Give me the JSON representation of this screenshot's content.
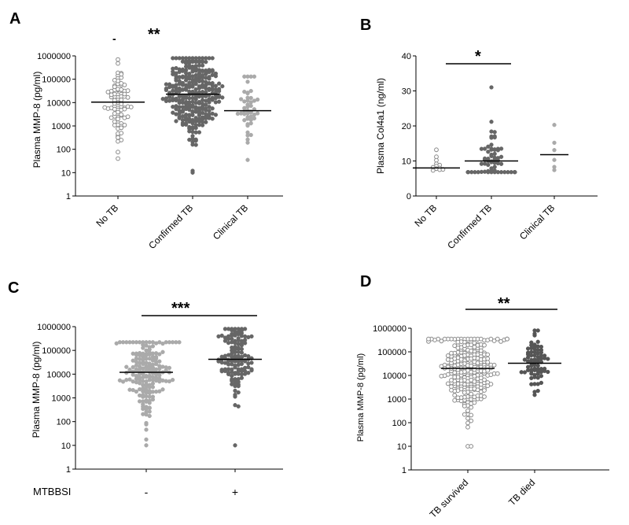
{
  "colors": {
    "open": "#8a8a8a",
    "light": "#aaaaaa",
    "dark": "#666666",
    "darker": "#555555"
  },
  "chart_data": [
    {
      "panel": "A",
      "type": "scatter",
      "ylabel": "Plasma MMP-8 (pg/ml)",
      "yscale": "log",
      "ylim": [
        1,
        1000000
      ],
      "ticks": [
        "1",
        "10",
        "100",
        "1000",
        "10000",
        "100000",
        "1000000"
      ],
      "significance": {
        "stars": "**",
        "dash": "-"
      },
      "groups": [
        {
          "name": "No TB",
          "style": "open",
          "median": 10500,
          "n": 80,
          "min": 40,
          "max": 700000,
          "values_summary": "spread 40–700000"
        },
        {
          "name": "Confirmed TB",
          "style": "dark",
          "median": 23000,
          "n": 300,
          "min": 10,
          "max": 800000,
          "values_summary": "spread 10–800000"
        },
        {
          "name": "Clinical TB",
          "style": "light",
          "median": 4500,
          "n": 45,
          "min": 35,
          "max": 130000,
          "values_summary": "spread 35–130000"
        }
      ]
    },
    {
      "panel": "B",
      "type": "scatter",
      "ylabel": "Plasma Col4a1 (ng/ml)",
      "yscale": "linear",
      "ylim": [
        0,
        40
      ],
      "ticks": [
        "0",
        "10",
        "20",
        "30",
        "40"
      ],
      "significance": {
        "stars": "*",
        "from": "No TB",
        "to": "Confirmed TB"
      },
      "groups": [
        {
          "name": "No TB",
          "style": "open",
          "median": 8,
          "values": [
            13.2,
            11.2,
            10.2,
            9.2,
            8.8,
            8.5,
            8.0,
            7.8,
            7.5,
            7.3,
            7.6,
            8.2
          ]
        },
        {
          "name": "Confirmed TB",
          "style": "dark",
          "median": 10,
          "n": 60,
          "min": 6.8,
          "max": 31
        },
        {
          "name": "Clinical TB",
          "style": "light",
          "median": 11.8,
          "values": [
            20.3,
            15.2,
            13.1,
            10.3,
            8.3,
            7.4
          ]
        }
      ]
    },
    {
      "panel": "C",
      "type": "scatter",
      "ylabel": "Plasma MMP-8 (pg/ml)",
      "yscale": "log",
      "ylim": [
        1,
        1000000
      ],
      "ticks": [
        "1",
        "10",
        "100",
        "1000",
        "10000",
        "100000",
        "1000000"
      ],
      "significance": {
        "stars": "***",
        "from": "-",
        "to": "+"
      },
      "xgroup_title": "MTBBSI",
      "groups": [
        {
          "name": "-",
          "style": "light",
          "median": 12000,
          "n": 180,
          "min": 10,
          "max": 220000
        },
        {
          "name": "+",
          "style": "dark",
          "median": 42000,
          "n": 130,
          "min": 10,
          "max": 800000
        }
      ]
    },
    {
      "panel": "D",
      "type": "scatter",
      "ylabel": "Plasma MMP-8 (pg/ml)",
      "yscale": "log",
      "ylim": [
        1,
        1000000
      ],
      "ticks": [
        "1",
        "10",
        "100",
        "1000",
        "10000",
        "100000",
        "1000000"
      ],
      "significance": {
        "stars": "**",
        "from": "TB survived",
        "to": "TB died"
      },
      "groups": [
        {
          "name": "TB survived",
          "style": "open",
          "median": 20000,
          "n": 260,
          "min": 10,
          "max": 350000
        },
        {
          "name": "TB died",
          "style": "darker",
          "median": 33000,
          "n": 70,
          "min": 1500,
          "max": 800000
        }
      ]
    }
  ]
}
